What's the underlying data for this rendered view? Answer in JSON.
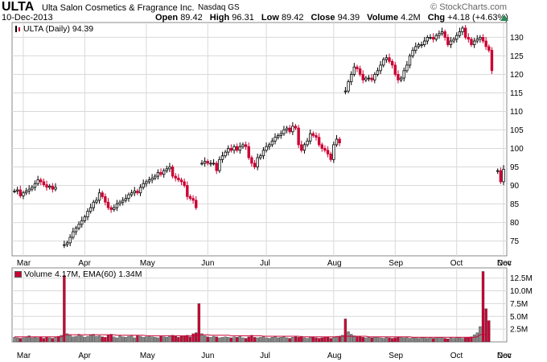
{
  "header": {
    "ticker": "ULTA",
    "company": "Ulta Salon Cosmetics & Fragrance Inc.",
    "exchange": "Nasdaq GS",
    "brand": "© StockCharts.com",
    "date": "10-Dec-2013",
    "open_label": "Open",
    "open": "89.42",
    "high_label": "High",
    "high": "96.31",
    "low_label": "Low",
    "low": "89.42",
    "close_label": "Close",
    "close": "94.39",
    "volume_label": "Volume",
    "volume": "4.2M",
    "chg_label": "Chg",
    "chg": "+4.18 (+4.63%)",
    "chg_icon": "up-triangle-icon",
    "up_color": "#2e8b57"
  },
  "price_legend": "ULTA (Daily) 94.39",
  "volume_legend": "Volume 4.17M, EMA(60) 1.34M",
  "colors": {
    "up": "#000000",
    "down": "#cc0033",
    "grid": "#d9d9d9",
    "ema": "#cc0033",
    "vol_up": "#888888",
    "vol_down": "#cc0033"
  },
  "chart_data": [
    {
      "type": "ohlc",
      "title": "ULTA (Daily) 94.39",
      "ylim": [
        71,
        134
      ],
      "y_ticks": [
        75,
        80,
        85,
        90,
        95,
        100,
        105,
        110,
        115,
        120,
        125,
        130
      ],
      "x_ticks": [
        "Mar",
        "Apr",
        "May",
        "Jun",
        "Jul",
        "Aug",
        "Sep",
        "Oct",
        "Nov",
        "Dec"
      ],
      "grid": true,
      "close_series": [
        88.5,
        88.8,
        87.2,
        88.0,
        88.5,
        89.0,
        89.5,
        90.5,
        91.5,
        91.0,
        90.2,
        89.5,
        89.8,
        89.0,
        89.5,
        null,
        null,
        74.0,
        74.5,
        76.0,
        77.5,
        78.5,
        79.5,
        80.5,
        81.5,
        83.0,
        84.0,
        85.5,
        86.0,
        88.0,
        87.0,
        85.5,
        84.0,
        83.5,
        84.0,
        85.0,
        85.5,
        86.0,
        86.5,
        87.5,
        88.0,
        88.5,
        88.0,
        89.5,
        90.5,
        91.0,
        91.5,
        92.0,
        92.5,
        93.5,
        93.0,
        94.0,
        94.5,
        95.0,
        92.5,
        92.0,
        91.5,
        91.0,
        90.0,
        87.0,
        86.5,
        86.0,
        84.0,
        null,
        96.0,
        96.5,
        96.0,
        96.0,
        96.0,
        94.0,
        97.0,
        98.0,
        99.0,
        100.0,
        99.5,
        100.5,
        99.5,
        100.5,
        101.0,
        100.5,
        97.5,
        96.0,
        95.0,
        97.5,
        98.0,
        99.5,
        100.5,
        101.0,
        102.0,
        103.0,
        103.5,
        104.0,
        105.0,
        105.5,
        104.5,
        106.0,
        105.5,
        101.0,
        99.5,
        101.0,
        102.0,
        104.0,
        103.5,
        103.0,
        101.0,
        100.0,
        99.5,
        98.5,
        97.0,
        101.0,
        102.5,
        101.5,
        null,
        115.5,
        118.0,
        120.0,
        122.0,
        121.5,
        120.0,
        118.5,
        119.0,
        119.0,
        118.5,
        120.0,
        121.0,
        122.5,
        124.0,
        124.5,
        123.5,
        122.5,
        120.0,
        118.5,
        119.0,
        121.0,
        122.5,
        125.0,
        126.5,
        127.5,
        128.0,
        128.0,
        129.0,
        130.0,
        130.0,
        129.5,
        130.5,
        131.0,
        131.5,
        130.0,
        128.0,
        129.0,
        129.5,
        130.5,
        131.5,
        132.5,
        130.0,
        129.5,
        128.0,
        129.0,
        129.5,
        130.0,
        129.0,
        127.5,
        126.5,
        121.0,
        null,
        94.0,
        91.0,
        94.39
      ],
      "volume": {
        "ylim": [
          0,
          14.5
        ],
        "y_ticks": [
          2.5,
          5.0,
          7.5,
          10.0,
          12.5
        ],
        "y_tick_labels": [
          "2.5M",
          "5.0M",
          "7.5M",
          "10.0M",
          "12.5M"
        ],
        "values_millions": [
          0.9,
          0.8,
          0.7,
          0.8,
          1.0,
          1.2,
          0.8,
          0.9,
          0.8,
          1.0,
          0.7,
          0.9,
          0.8,
          0.7,
          0.9,
          1.1,
          1.3,
          13.0,
          1.6,
          1.4,
          1.0,
          1.1,
          1.5,
          1.2,
          0.9,
          1.1,
          1.3,
          1.5,
          1.1,
          1.2,
          1.0,
          0.9,
          1.3,
          1.5,
          1.0,
          0.8,
          1.2,
          1.0,
          0.9,
          1.1,
          1.3,
          0.8,
          1.2,
          1.1,
          0.9,
          1.0,
          1.2,
          1.0,
          0.9,
          0.8,
          1.1,
          1.0,
          0.9,
          1.2,
          1.3,
          1.1,
          0.9,
          1.1,
          1.2,
          1.3,
          1.0,
          1.6,
          1.8,
          7.5,
          1.6,
          1.2,
          1.0,
          0.9,
          1.1,
          1.0,
          0.8,
          0.9,
          1.0,
          0.9,
          0.8,
          1.0,
          0.9,
          1.2,
          0.8,
          0.7,
          1.0,
          1.3,
          0.9,
          0.8,
          0.9,
          1.0,
          0.8,
          0.7,
          0.9,
          1.0,
          0.8,
          0.9,
          1.0,
          0.8,
          0.7,
          0.9,
          1.0,
          0.9,
          1.1,
          0.8,
          0.7,
          0.9,
          1.0,
          0.8,
          0.7,
          0.8,
          0.9,
          1.0,
          0.7,
          0.9,
          1.1,
          1.0,
          1.3,
          4.5,
          2.0,
          1.5,
          1.2,
          1.0,
          1.1,
          0.9,
          0.8,
          0.9,
          0.8,
          0.9,
          1.0,
          0.8,
          0.7,
          0.9,
          0.8,
          0.7,
          0.8,
          0.9,
          1.0,
          0.8,
          0.9,
          0.7,
          0.8,
          0.9,
          0.7,
          0.8,
          0.9,
          0.7,
          0.8,
          0.7,
          0.8,
          0.9,
          0.8,
          0.7,
          0.6,
          0.8,
          0.7,
          0.9,
          0.8,
          0.7,
          0.8,
          0.9,
          1.0,
          1.4,
          1.8,
          3.0,
          13.8,
          6.5,
          4.17
        ],
        "ema_millions": [
          1.0,
          1.0,
          1.0,
          1.0,
          1.0,
          1.0,
          1.0,
          1.0,
          1.0,
          1.0,
          1.0,
          1.0,
          1.0,
          1.0,
          1.0,
          1.0,
          1.0,
          1.4,
          1.4,
          1.4,
          1.4,
          1.4,
          1.4,
          1.4,
          1.4,
          1.4,
          1.4,
          1.4,
          1.4,
          1.4,
          1.4,
          1.4,
          1.4,
          1.4,
          1.4,
          1.3,
          1.3,
          1.3,
          1.3,
          1.3,
          1.3,
          1.3,
          1.3,
          1.3,
          1.3,
          1.2,
          1.2,
          1.2,
          1.2,
          1.2,
          1.2,
          1.2,
          1.2,
          1.2,
          1.2,
          1.2,
          1.2,
          1.2,
          1.2,
          1.2,
          1.2,
          1.2,
          1.2,
          1.4,
          1.4,
          1.4,
          1.4,
          1.3,
          1.3,
          1.3,
          1.3,
          1.3,
          1.3,
          1.3,
          1.2,
          1.2,
          1.2,
          1.2,
          1.2,
          1.2,
          1.2,
          1.2,
          1.2,
          1.2,
          1.2,
          1.1,
          1.1,
          1.1,
          1.1,
          1.1,
          1.1,
          1.1,
          1.1,
          1.1,
          1.1,
          1.1,
          1.1,
          1.1,
          1.0,
          1.0,
          1.0,
          1.0,
          1.0,
          1.0,
          1.0,
          1.0,
          1.0,
          1.0,
          1.0,
          1.0,
          1.0,
          1.1,
          1.1,
          1.1,
          1.1,
          1.1,
          1.1,
          1.1,
          1.1,
          1.1,
          1.1,
          1.0,
          1.0,
          1.0,
          1.0,
          1.0,
          1.0,
          1.0,
          1.0,
          1.0,
          1.0,
          1.0,
          1.0,
          1.0,
          1.0,
          1.0,
          0.9,
          0.9,
          0.9,
          0.9,
          0.9,
          0.9,
          0.9,
          0.9,
          0.9,
          0.9,
          0.9,
          0.9,
          0.9,
          0.9,
          0.9,
          0.9,
          0.9,
          0.9,
          0.9,
          0.9,
          0.9,
          0.9,
          1.0,
          1.4,
          1.5,
          1.34
        ]
      }
    }
  ]
}
